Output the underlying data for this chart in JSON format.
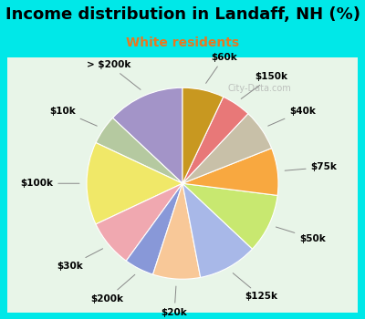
{
  "title": "Income distribution in Landaff, NH (%)",
  "subtitle": "White residents",
  "watermark": "City-Data.com",
  "labels": [
    "> $200k",
    "$10k",
    "$100k",
    "$30k",
    "$200k",
    "$20k",
    "$125k",
    "$50k",
    "$75k",
    "$40k",
    "$150k",
    "$60k"
  ],
  "values": [
    13,
    5,
    14,
    8,
    5,
    8,
    10,
    10,
    8,
    7,
    5,
    7
  ],
  "colors": [
    "#a394c8",
    "#b5c9a0",
    "#f0e868",
    "#f0a8b0",
    "#8898d8",
    "#f8c898",
    "#a8b8e8",
    "#c8e870",
    "#f8a840",
    "#c8c0a8",
    "#e87878",
    "#c89820"
  ],
  "bg_color": "#00e8e8",
  "chart_bg": "#e8f5e8",
  "title_color": "#000000",
  "subtitle_color": "#e87820",
  "label_color": "#000000",
  "startangle": 90,
  "figsize": [
    4.0,
    3.5
  ],
  "dpi": 100
}
